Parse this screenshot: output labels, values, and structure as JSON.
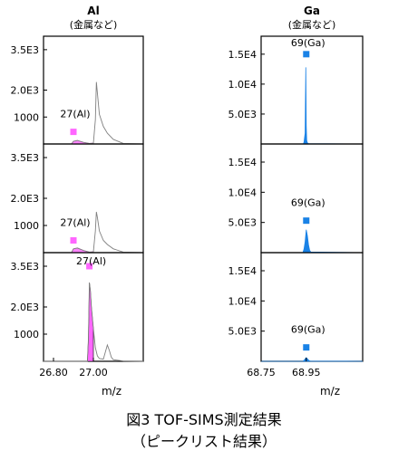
{
  "figure": {
    "caption_line1": "図3 TOF-SIMS測定結果",
    "caption_line2": "（ピークリスト結果）"
  },
  "chart_data": [
    {
      "type": "line",
      "panel": "Al",
      "row": 1,
      "title": "Al",
      "subtitle": "(金属など)",
      "peak_label": "27(Al)",
      "xlim": [
        26.75,
        27.25
      ],
      "ylim": [
        0,
        4000
      ],
      "yticks": [
        1000,
        2000,
        3500
      ],
      "ytick_labels": [
        "1000",
        "2.0E3",
        "3.5E3"
      ],
      "marker": {
        "x": 26.9,
        "y": 450,
        "color": "#ff66ff"
      },
      "fill_color": "#ff66ff",
      "line_color": "#808080",
      "series": [
        {
          "x": [
            26.75,
            26.89,
            26.9,
            26.92,
            26.95,
            26.98,
            27.0,
            27.01,
            27.015,
            27.02,
            27.03,
            27.05,
            27.07,
            27.1,
            27.15,
            27.25
          ],
          "y": [
            0,
            0,
            100,
            130,
            60,
            20,
            30,
            900,
            2300,
            1900,
            1100,
            650,
            400,
            170,
            20,
            0
          ]
        }
      ]
    },
    {
      "type": "line",
      "panel": "Al",
      "row": 2,
      "title": "",
      "subtitle": "",
      "peak_label": "27(Al)",
      "xlim": [
        26.75,
        27.25
      ],
      "ylim": [
        0,
        4000
      ],
      "yticks": [
        1000,
        2000,
        3500
      ],
      "ytick_labels": [
        "1000",
        "2.0E3",
        "3.5E3"
      ],
      "marker": {
        "x": 26.9,
        "y": 450,
        "color": "#ff66ff"
      },
      "fill_color": "#ff66ff",
      "line_color": "#808080",
      "series": [
        {
          "x": [
            26.75,
            26.89,
            26.9,
            26.92,
            26.95,
            26.98,
            27.0,
            27.01,
            27.015,
            27.02,
            27.03,
            27.05,
            27.07,
            27.1,
            27.15,
            27.25
          ],
          "y": [
            0,
            0,
            140,
            170,
            80,
            20,
            30,
            800,
            1500,
            1300,
            800,
            450,
            300,
            140,
            20,
            0
          ]
        }
      ]
    },
    {
      "type": "area",
      "panel": "Al",
      "row": 3,
      "title": "",
      "subtitle": "",
      "peak_label": "27(Al)",
      "xlim": [
        26.75,
        27.25
      ],
      "ylim": [
        0,
        4000
      ],
      "yticks": [
        1000,
        2000,
        3500
      ],
      "ytick_labels": [
        "1000",
        "2.0E3",
        "3.5E3"
      ],
      "marker": {
        "x": 26.98,
        "y": 3500,
        "color": "#ff66ff"
      },
      "fill_color": "#ff66ff",
      "line_color": "#808080",
      "series": [
        {
          "x": [
            26.75,
            26.97,
            26.975,
            26.98,
            26.985,
            26.99,
            27.0,
            27.01,
            27.02,
            27.03,
            27.05,
            27.07,
            27.08,
            27.09,
            27.1,
            27.15,
            27.25
          ],
          "y": [
            0,
            0,
            800,
            2900,
            2600,
            2000,
            1200,
            500,
            200,
            100,
            80,
            600,
            400,
            150,
            60,
            10,
            0
          ]
        }
      ]
    },
    {
      "type": "area",
      "panel": "Ga",
      "row": 1,
      "title": "Ga",
      "subtitle": "(金属など)",
      "peak_label": "69(Ga)",
      "xlim": [
        68.75,
        69.2
      ],
      "ylim": [
        0,
        18000
      ],
      "yticks": [
        5000,
        10000,
        15000
      ],
      "ytick_labels": [
        "5.0E3",
        "1.0E4",
        "1.5E4"
      ],
      "marker": {
        "x": 68.95,
        "y": 15000,
        "color": "#1a82e6"
      },
      "fill_color": "#1a82e6",
      "line_color": "#1a82e6",
      "series": [
        {
          "x": [
            68.75,
            68.937,
            68.94,
            68.945,
            68.948,
            68.95,
            68.952,
            68.955,
            68.96,
            69.2
          ],
          "y": [
            0,
            0,
            300,
            1800,
            12800,
            3000,
            600,
            200,
            50,
            0
          ]
        }
      ]
    },
    {
      "type": "area",
      "panel": "Ga",
      "row": 2,
      "title": "",
      "subtitle": "",
      "peak_label": "69(Ga)",
      "xlim": [
        68.75,
        69.2
      ],
      "ylim": [
        0,
        18000
      ],
      "yticks": [
        5000,
        10000,
        15000
      ],
      "ytick_labels": [
        "5.0E3",
        "1.0E4",
        "1.5E4"
      ],
      "marker": {
        "x": 68.95,
        "y": 5300,
        "color": "#1a82e6"
      },
      "fill_color": "#1a82e6",
      "line_color": "#1a82e6",
      "series": [
        {
          "x": [
            68.75,
            68.935,
            68.94,
            68.945,
            68.95,
            68.955,
            68.96,
            68.965,
            68.97,
            69.2
          ],
          "y": [
            0,
            0,
            600,
            1800,
            3800,
            2800,
            1300,
            400,
            100,
            0
          ]
        }
      ]
    },
    {
      "type": "area",
      "panel": "Ga",
      "row": 3,
      "title": "",
      "subtitle": "",
      "peak_label": "69(Ga)",
      "xlim": [
        68.75,
        69.2
      ],
      "ylim": [
        0,
        18000
      ],
      "yticks": [
        5000,
        10000,
        15000
      ],
      "ytick_labels": [
        "5.0E3",
        "1.0E4",
        "1.5E4"
      ],
      "marker": {
        "x": 68.95,
        "y": 2300,
        "color": "#1a82e6"
      },
      "fill_color": "#1a82e6",
      "line_color": "#1a82e6",
      "series": [
        {
          "x": [
            68.75,
            68.935,
            68.94,
            68.945,
            68.95,
            68.955,
            68.96,
            68.965,
            68.97,
            69.2
          ],
          "y": [
            0,
            0,
            150,
            400,
            600,
            400,
            200,
            60,
            20,
            0
          ]
        }
      ]
    }
  ],
  "axes": {
    "al": {
      "xticks": [
        26.8,
        27.0
      ],
      "xtick_labels": [
        "26.80",
        "27.00"
      ],
      "xlabel": "m/z"
    },
    "ga": {
      "xticks": [
        68.75,
        68.95
      ],
      "xtick_labels": [
        "68.75",
        "68.95"
      ],
      "xlabel": "m/z"
    }
  }
}
